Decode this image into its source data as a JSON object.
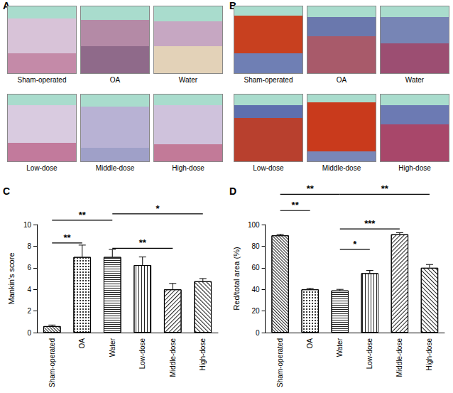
{
  "image_panels": [
    {
      "panel": "A",
      "captions": [
        "Sham-operated",
        "OA",
        "Water",
        "Low-dose",
        "Middle-dose",
        "High-dose"
      ]
    },
    {
      "panel": "B",
      "captions": [
        "Sham-operated",
        "OA",
        "Water",
        "Low-dose",
        "Middle-dose",
        "High-dose"
      ]
    }
  ],
  "chart_data": [
    {
      "type": "bar",
      "panel": "C",
      "y_label": "Mankin's score",
      "categories": [
        "Sham-operated",
        "OA",
        "Water",
        "Low-dose",
        "Middle-dose",
        "High-dose"
      ],
      "values": [
        0.6,
        7.0,
        7.0,
        6.25,
        4.0,
        4.75
      ],
      "errors": [
        0.1,
        1.1,
        0.7,
        0.75,
        0.55,
        0.25
      ],
      "ylim": [
        0,
        10
      ],
      "yticks": [
        0,
        2,
        4,
        6,
        8,
        10
      ],
      "grid": false,
      "color": "#ffffff",
      "annotations": [
        {
          "from": "Sham-operated",
          "to": "OA",
          "y": 8.3,
          "label": "**"
        },
        {
          "from": "Sham-operated",
          "to": "Water",
          "y": 10.4,
          "label": "**"
        },
        {
          "from": "Water",
          "to": "Middle-dose",
          "y": 7.8,
          "label": "**"
        },
        {
          "from": "Water",
          "to": "High-dose",
          "y": 11.0,
          "label": "*"
        }
      ]
    },
    {
      "type": "bar",
      "panel": "D",
      "y_label": "Red/total area (%)",
      "categories": [
        "Sham-operated",
        "OA",
        "Water",
        "Low-dose",
        "Middle-dose",
        "High-dose"
      ],
      "values": [
        90,
        40,
        39,
        55,
        91,
        60
      ],
      "errors": [
        1,
        1,
        1,
        2.5,
        1.5,
        3
      ],
      "ylim": [
        0,
        100
      ],
      "yticks": [
        0,
        20,
        40,
        60,
        80,
        100
      ],
      "grid": false,
      "color": "#ffffff",
      "annotations": [
        {
          "from": "Sham-operated",
          "to": "Water",
          "y": 128,
          "label": "**"
        },
        {
          "from": "Sham-operated",
          "to": "OA",
          "y": 113,
          "label": "**"
        },
        {
          "from": "Water",
          "to": "High-dose",
          "y": 128,
          "label": "**"
        },
        {
          "from": "Water",
          "to": "Middle-dose",
          "y": 96,
          "label": "***"
        },
        {
          "from": "Water",
          "to": "Low-dose",
          "y": 77,
          "label": "*"
        }
      ]
    }
  ]
}
